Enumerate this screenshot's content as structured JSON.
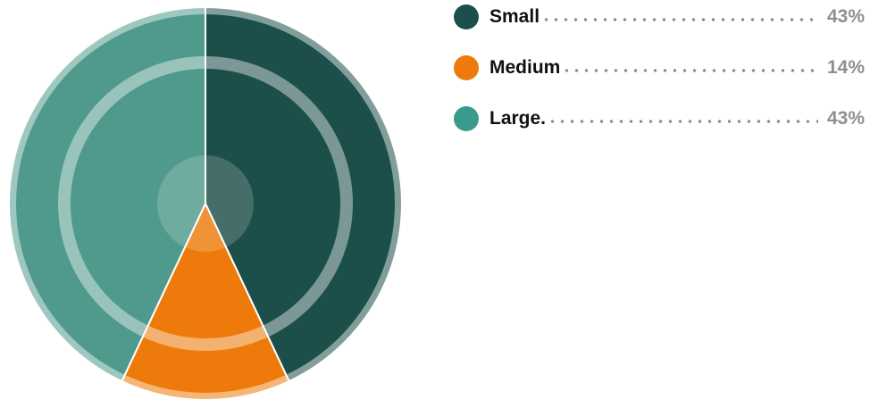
{
  "chart_data": {
    "type": "pie",
    "title": "",
    "series": [
      {
        "name": "Small",
        "value": 43,
        "value_label": "43%",
        "color": "#1d4f4a"
      },
      {
        "name": "Medium",
        "value": 14,
        "value_label": "14%",
        "color": "#ed7a0a"
      },
      {
        "name": "Large",
        "value": 43,
        "value_label": "43%",
        "color": "#4f9a8c"
      }
    ],
    "legend": {
      "placement": "right",
      "labels": [
        "Small",
        "Medium",
        "Large."
      ],
      "swatch_colors": [
        "#1d4f4a",
        "#ed7a0a",
        "#3a9a8c"
      ]
    }
  }
}
